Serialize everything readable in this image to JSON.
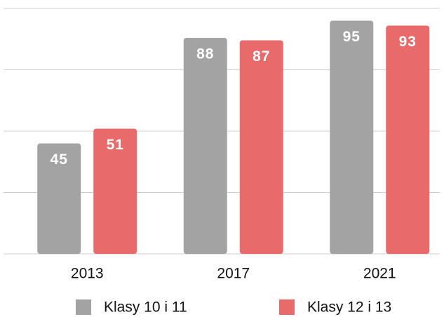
{
  "chart_data": {
    "type": "bar",
    "categories": [
      "2013",
      "2017",
      "2021"
    ],
    "series": [
      {
        "name": "Klasy 10 i 11",
        "color": "#a3a3a3",
        "values": [
          45,
          88,
          95
        ]
      },
      {
        "name": "Klasy 12 i 13",
        "color": "#e96a6a",
        "values": [
          51,
          87,
          93
        ]
      }
    ],
    "ylim": [
      0,
      100
    ],
    "yticks": [
      0,
      25,
      50,
      75,
      100
    ],
    "grid": true
  }
}
